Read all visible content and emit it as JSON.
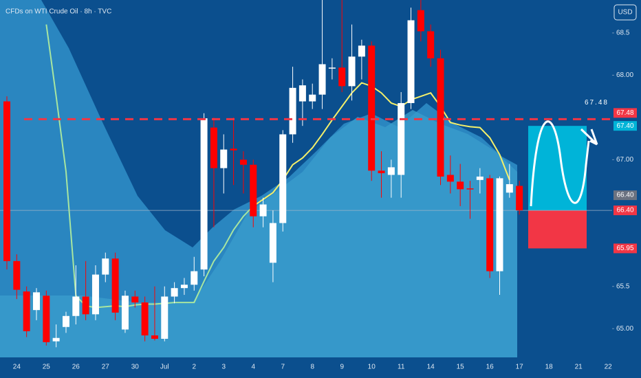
{
  "chart_data": {
    "type": "candlestick",
    "title": "CFDs on WTI Crude Oil · 8h · TVC",
    "currency": "USD",
    "categories": [
      null,
      "24",
      null,
      null,
      "25",
      null,
      null,
      "26",
      null,
      null,
      "27",
      null,
      null,
      "30",
      null,
      null,
      "Jul",
      null,
      null,
      "2",
      null,
      null,
      "3",
      null,
      null,
      "4",
      null,
      null,
      "7",
      null,
      null,
      "8",
      null,
      null,
      "9",
      null,
      null,
      "10",
      null,
      null,
      "11",
      null,
      null,
      "14",
      null,
      null,
      "15",
      null,
      null,
      "16",
      null,
      null,
      "17",
      null,
      null,
      "18",
      null,
      null,
      "21",
      null,
      null,
      "22"
    ],
    "open": [
      67.69,
      65.8,
      65.44,
      65.22,
      65.39,
      64.85,
      65.02,
      65.15,
      65.38,
      65.17,
      65.64,
      65.83,
      64.99,
      65.38,
      65.31,
      64.92,
      64.88,
      65.38,
      65.48,
      65.52,
      65.7,
      67.38,
      66.9,
      67.13,
      67.0,
      66.94,
      66.33,
      65.78,
      66.25,
      67.3,
      67.69,
      67.69,
      67.77,
      68.09,
      68.09,
      67.87,
      68.22,
      68.35,
      66.87,
      66.82,
      66.82,
      67.67,
      68.77,
      68.52,
      68.2,
      66.82,
      66.74,
      66.66,
      66.76,
      66.78,
      65.68,
      66.61,
      66.69,
      null,
      null,
      null,
      null,
      null,
      null,
      null,
      null,
      null
    ],
    "high": [
      67.75,
      65.88,
      65.5,
      65.48,
      65.45,
      65.05,
      65.2,
      65.75,
      65.8,
      65.75,
      65.9,
      65.9,
      65.45,
      65.45,
      65.38,
      65.5,
      65.5,
      65.55,
      65.6,
      65.85,
      67.55,
      67.5,
      67.3,
      67.5,
      67.1,
      67.0,
      66.55,
      66.4,
      67.35,
      68.1,
      67.95,
      67.9,
      68.89,
      68.2,
      68.89,
      68.6,
      68.42,
      68.4,
      67.1,
      67.0,
      67.8,
      68.8,
      68.89,
      68.6,
      68.3,
      67.05,
      66.95,
      66.75,
      66.9,
      66.82,
      66.8,
      66.95,
      66.75,
      null,
      null,
      null,
      null,
      null,
      null,
      null,
      null,
      null
    ],
    "low": [
      65.7,
      65.35,
      64.9,
      65.1,
      64.8,
      64.78,
      64.95,
      65.05,
      65.1,
      65.1,
      65.55,
      65.1,
      64.95,
      65.25,
      64.85,
      64.86,
      64.85,
      65.3,
      65.4,
      65.45,
      65.62,
      66.2,
      66.6,
      66.7,
      66.6,
      66.2,
      66.2,
      65.55,
      66.15,
      67.2,
      67.4,
      67.6,
      67.6,
      67.95,
      67.8,
      67.7,
      67.95,
      66.75,
      66.55,
      66.55,
      66.55,
      67.6,
      68.4,
      68.1,
      66.7,
      66.6,
      66.45,
      66.3,
      66.6,
      65.6,
      65.4,
      66.55,
      66.35,
      null,
      null,
      null,
      null,
      null,
      null,
      null,
      null,
      null
    ],
    "close": [
      65.8,
      65.46,
      64.97,
      65.43,
      64.84,
      64.89,
      65.15,
      65.38,
      65.17,
      65.64,
      65.83,
      65.19,
      65.39,
      65.31,
      64.92,
      64.88,
      65.38,
      65.48,
      65.52,
      65.68,
      67.49,
      66.9,
      67.12,
      67.11,
      66.94,
      66.33,
      66.47,
      66.25,
      67.3,
      67.85,
      67.88,
      67.77,
      68.13,
      68.09,
      67.87,
      68.22,
      68.35,
      66.87,
      66.84,
      66.91,
      67.67,
      68.65,
      68.52,
      68.2,
      66.8,
      66.74,
      66.65,
      66.65,
      66.8,
      65.68,
      66.78,
      66.71,
      66.4,
      null,
      null,
      null,
      null,
      null,
      null,
      null,
      null,
      null
    ],
    "up_color": "#ffffff",
    "down_color": "#ff0000",
    "lines": [
      {
        "color": "#a8e6a0",
        "values": [
          null,
          null,
          null,
          null,
          68.6,
          67.75,
          66.86,
          65.39,
          65.27,
          65.25,
          65.26,
          65.27,
          65.26,
          65.28,
          65.29,
          65.29,
          65.3,
          65.31,
          65.31,
          65.31,
          65.56,
          65.8,
          65.96,
          66.17,
          66.33,
          66.45,
          null,
          null,
          null,
          null,
          null,
          null,
          null,
          null,
          null,
          null,
          null,
          null,
          null,
          null,
          null,
          null,
          null,
          null,
          null,
          null,
          null,
          null,
          null,
          null,
          null,
          null,
          null,
          null,
          null,
          null,
          null,
          null,
          null,
          null,
          null,
          null
        ]
      },
      {
        "color": "#f5f06a",
        "values": [
          null,
          null,
          null,
          null,
          null,
          null,
          null,
          null,
          null,
          null,
          null,
          null,
          null,
          null,
          null,
          null,
          null,
          null,
          null,
          null,
          null,
          null,
          null,
          null,
          null,
          66.45,
          66.53,
          66.61,
          66.76,
          66.94,
          67.02,
          67.14,
          67.3,
          67.47,
          67.63,
          67.79,
          67.91,
          67.87,
          67.79,
          67.67,
          67.63,
          67.71,
          67.75,
          67.79,
          67.63,
          67.44,
          67.41,
          67.39,
          67.38,
          67.26,
          67.06,
          66.76,
          null,
          null,
          null,
          null,
          null,
          null,
          null,
          null,
          null,
          null
        ]
      }
    ],
    "ylim": [
      64.66,
      68.89
    ],
    "yticks": [
      {
        "value": 65,
        "label": "65.00"
      },
      65.5,
      {
        "value": 67,
        "label": "67.00"
      },
      {
        "value": 68,
        "label": "68.00"
      },
      68.5
    ],
    "target_line": 67.48,
    "last_price": {
      "value": 66.4,
      "label": "66.40",
      "color": "#6b7280"
    },
    "position": {
      "target": {
        "value": 67.4,
        "label": "67.40",
        "color": "#00b4d8"
      },
      "entry": {
        "value": 66.4,
        "label": "66.40",
        "color": "#f23645"
      },
      "stop": 65.95,
      "stop_color": "#f23645"
    }
  }
}
